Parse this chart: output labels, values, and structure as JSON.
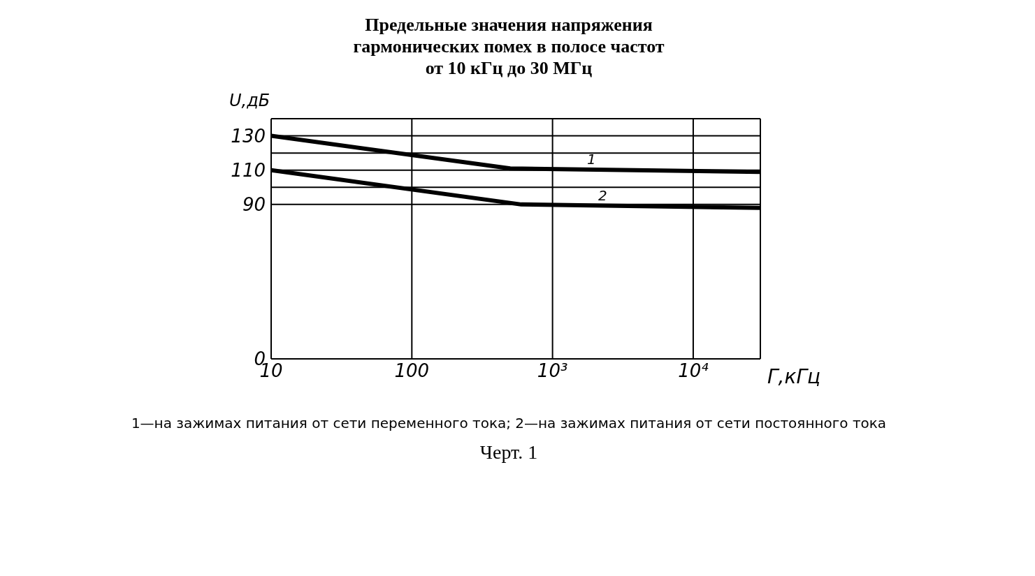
{
  "chart_data": {
    "type": "line",
    "title": "Предельные значения напряжения\nгармонических помех в полосе частот\nот 10 кГц до 30 МГц",
    "ylabel": "U,дБ",
    "xlabel": "Г,кГц",
    "log": "x",
    "grid": true,
    "marker": "none",
    "line_style": "solid",
    "xlim": [
      10,
      30000
    ],
    "xticks": [
      10,
      100,
      {
        "value": 1000,
        "label": "10³"
      },
      {
        "value": 10000,
        "label": "10⁴"
      }
    ],
    "ylim": [
      0,
      140
    ],
    "yticks": [
      0,
      90,
      {
        "value": 100,
        "label": null
      },
      110,
      {
        "value": 120,
        "label": null
      },
      130
    ],
    "series": [
      {
        "name": "1",
        "color": "#000000",
        "x": [
          10,
          500,
          30000
        ],
        "values": [
          130,
          111,
          109
        ]
      },
      {
        "name": "2",
        "color": "#000000",
        "x": [
          10,
          600,
          30000
        ],
        "values": [
          110,
          90,
          88
        ]
      }
    ],
    "annotations": [
      "1—на зажимах питания от сети переменного тока; 2—на зажимах питания от сети постоянного тока",
      "Черт. 1"
    ]
  }
}
